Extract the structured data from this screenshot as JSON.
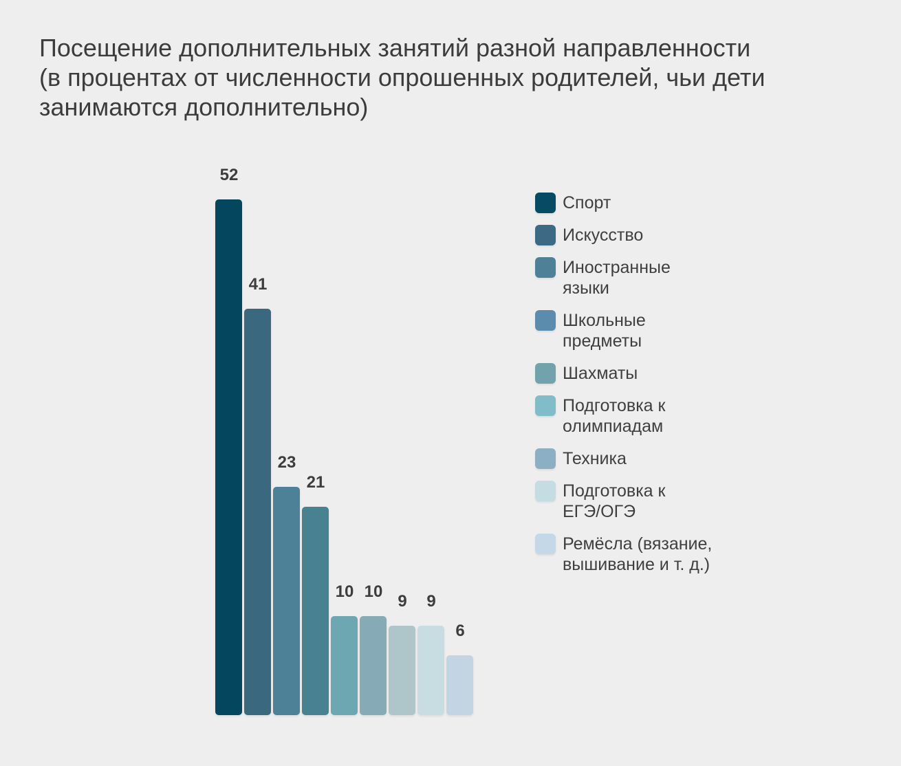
{
  "page": {
    "background": "#EEEEEE"
  },
  "title_lines": [
    "Посещение дополнительных занятий разной направленности",
    "(в процентах от численности опрошенных родителей, чьи дети",
    "занимаются дополнительно)"
  ],
  "chart_data": {
    "type": "bar",
    "title": "Посещение дополнительных занятий разной направленности (в процентах от численности опрошенных родителей, чьи дети занимаются дополнительно)",
    "categories": [
      "Спорт",
      "Искусство",
      "Иностранные языки",
      "Школьные предметы",
      "Шахматы",
      "Подготовка к олимпиадам",
      "Техника",
      "Подготовка к ЕГЭ/ОГЭ",
      "Ремёсла (вязание, вышивание и т. д.)"
    ],
    "values": [
      52,
      41,
      23,
      21,
      10,
      10,
      9,
      9,
      6
    ],
    "bar_colors": [
      "#04465E",
      "#3A687F",
      "#4D8197",
      "#488290",
      "#6DA7B2",
      "#86ABB7",
      "#AEC5C9",
      "#C8DDE2",
      "#C3D5E2"
    ],
    "xlabel": "",
    "ylabel": "",
    "ylim": [
      0,
      52
    ],
    "grid": false,
    "axes_visible": false,
    "value_labels_visible": true,
    "legend": {
      "position": "right",
      "entries": [
        {
          "lines": [
            "Спорт"
          ],
          "color": "#064A63"
        },
        {
          "lines": [
            "Искусство"
          ],
          "color": "#3C6A84"
        },
        {
          "lines": [
            "Иностранные",
            "языки"
          ],
          "color": "#4E8198"
        },
        {
          "lines": [
            "Школьные",
            "предметы"
          ],
          "color": "#5B8CAD"
        },
        {
          "lines": [
            "Шахматы"
          ],
          "color": "#72A3AC"
        },
        {
          "lines": [
            "Подготовка к",
            "олимпиадам"
          ],
          "color": "#80BDC9"
        },
        {
          "lines": [
            "Техника"
          ],
          "color": "#8DAFC4"
        },
        {
          "lines": [
            "Подготовка к",
            "ЕГЭ/ОГЭ"
          ],
          "color": "#C4DCE2"
        },
        {
          "lines": [
            "Ремёсла (вязание,",
            "вышивание и т. д.)"
          ],
          "color": "#C4D8E8"
        }
      ]
    }
  }
}
